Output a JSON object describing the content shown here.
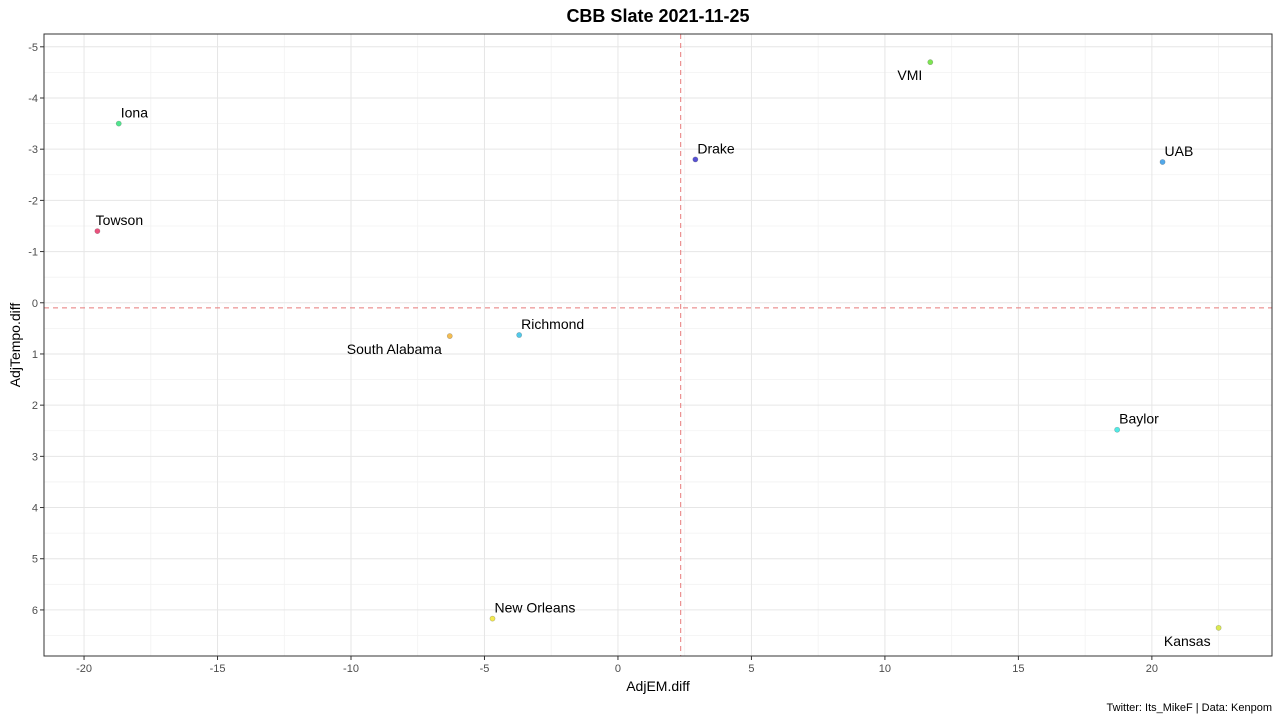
{
  "chart_data": {
    "type": "scatter",
    "title": "CBB Slate 2021-11-25",
    "xlabel": "AdjEM.diff",
    "ylabel": "AdjTempo.diff",
    "caption": "Twitter: Its_MikeF | Data: Kenpom",
    "xlim": [
      -21.5,
      24.5
    ],
    "ylim": [
      6.9,
      -5.25
    ],
    "y_reversed": true,
    "x_ticks": [
      -20,
      -15,
      -10,
      -5,
      0,
      5,
      10,
      15,
      20
    ],
    "x_tick_labels": [
      "-20",
      "-15",
      "-10",
      "-5",
      "0",
      "5",
      "10",
      "15",
      "20"
    ],
    "y_ticks": [
      -5,
      -4,
      -3,
      -2,
      -1,
      0,
      1,
      2,
      3,
      4,
      5,
      6
    ],
    "y_tick_labels": [
      "-5",
      "-4",
      "-3",
      "-2",
      "-1",
      "0",
      "1",
      "2",
      "3",
      "4",
      "5",
      "6"
    ],
    "reference_lines": {
      "vertical_x": 2.35,
      "horizontal_y": 0.1,
      "color": "#e87a7a"
    },
    "grid": true,
    "legend": "none",
    "points": [
      {
        "label": "VMI",
        "x": 11.7,
        "y": -4.7,
        "color": "#66e033",
        "label_pos": "bottom-left"
      },
      {
        "label": "Iona",
        "x": -18.7,
        "y": -3.5,
        "color": "#33e07a",
        "label_pos": "top-right"
      },
      {
        "label": "Drake",
        "x": 2.9,
        "y": -2.8,
        "color": "#3a33cc",
        "label_pos": "top-right"
      },
      {
        "label": "UAB",
        "x": 20.4,
        "y": -2.75,
        "color": "#3399e6",
        "label_pos": "top-right"
      },
      {
        "label": "Towson",
        "x": -19.5,
        "y": -1.4,
        "color": "#e63366",
        "label_pos": "top"
      },
      {
        "label": "South Alabama",
        "x": -6.3,
        "y": 0.65,
        "color": "#f2b233",
        "label_pos": "bottom-left"
      },
      {
        "label": "Richmond",
        "x": -3.7,
        "y": 0.63,
        "color": "#33c0e6",
        "label_pos": "top-right"
      },
      {
        "label": "Baylor",
        "x": 18.7,
        "y": 2.48,
        "color": "#33e6e0",
        "label_pos": "top-right"
      },
      {
        "label": "New Orleans",
        "x": -4.7,
        "y": 6.17,
        "color": "#f2e633",
        "label_pos": "top-right"
      },
      {
        "label": "Kansas",
        "x": 22.5,
        "y": 6.35,
        "color": "#d6e633",
        "label_pos": "bottom-left"
      }
    ]
  }
}
